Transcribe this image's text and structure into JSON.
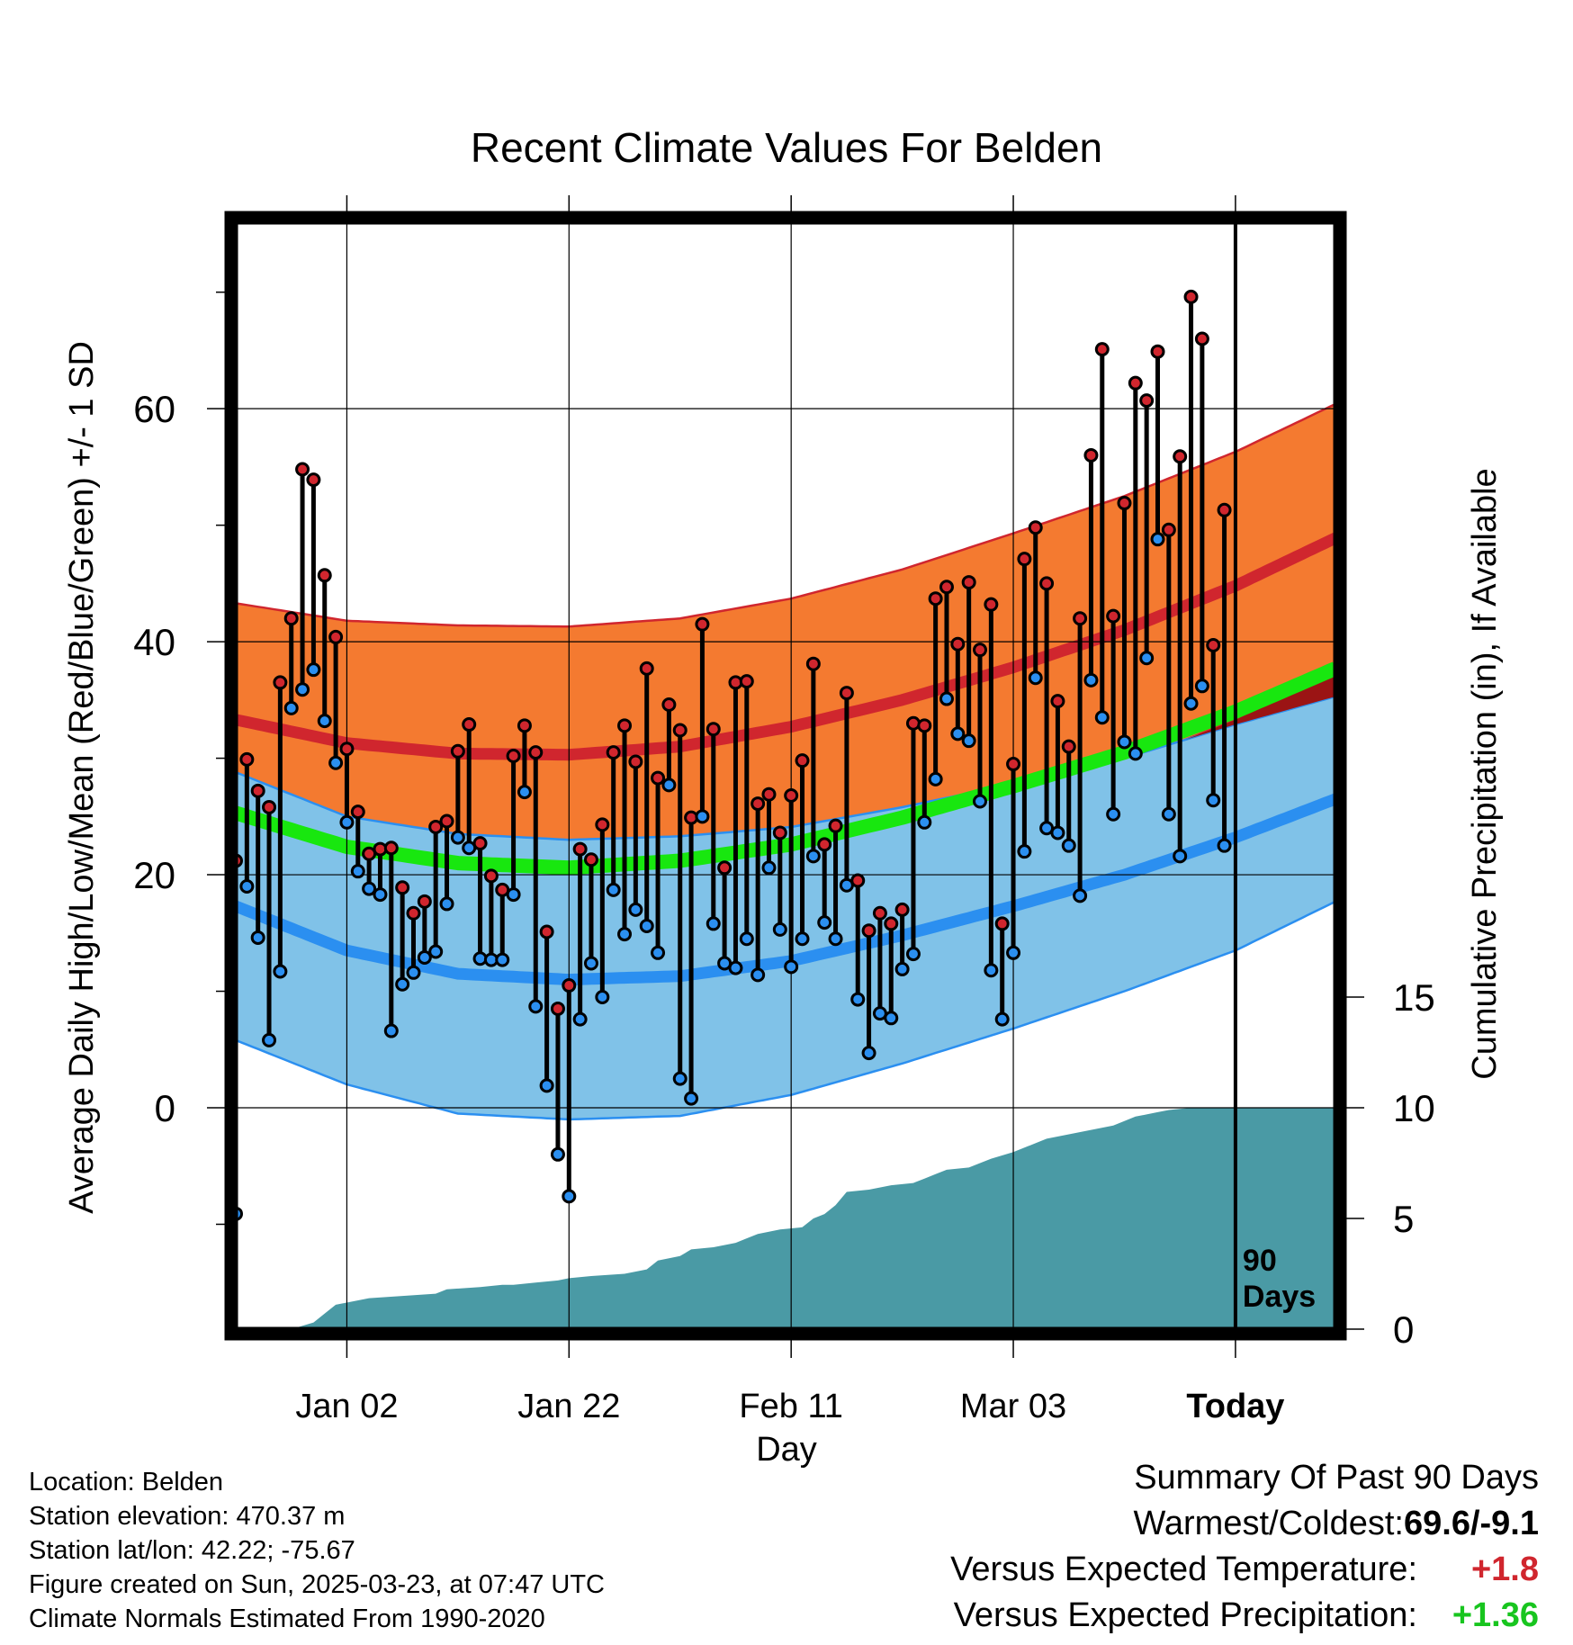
{
  "chart_data": {
    "type": "line",
    "title": "Recent Climate Values For Belden",
    "xlabel": "Day",
    "ylabel_left": "Average Daily High/Low/Mean (Red/Blue/Green) +/- 1 SD",
    "ylabel_right": "Cumulative Precipitation (in), If Available",
    "x_tick_labels": [
      "Jan 02",
      "Jan 22",
      "Feb 11",
      "Mar 03",
      "Today"
    ],
    "x_tick_day_index": [
      10,
      30,
      50,
      70,
      90
    ],
    "xlim_day_index": [
      0,
      99
    ],
    "ylim_left": [
      -19,
      76
    ],
    "y_ticks_left": [
      0,
      20,
      40,
      60
    ],
    "ylim_right": [
      0,
      50
    ],
    "y_ticks_right": [
      0,
      5,
      10,
      15
    ],
    "today_marker": {
      "day_index": 90,
      "label_line1": "90",
      "label_line2": "Days"
    },
    "normals_high": {
      "day_index": [
        0,
        10,
        20,
        30,
        40,
        50,
        60,
        70,
        80,
        90,
        99
      ],
      "mean": [
        33.3,
        31.3,
        30.4,
        30.3,
        31.0,
        32.7,
        35.0,
        37.8,
        41.0,
        44.8,
        48.9
      ],
      "sd": [
        10.0,
        10.5,
        11.0,
        11.0,
        11.0,
        11.0,
        11.2,
        11.5,
        11.5,
        11.5,
        11.5
      ]
    },
    "normals_low": {
      "day_index": [
        0,
        10,
        20,
        30,
        40,
        50,
        60,
        70,
        80,
        90,
        99
      ],
      "mean": [
        17.3,
        13.5,
        11.5,
        11.0,
        11.3,
        12.6,
        14.8,
        17.3,
        20.0,
        23.2,
        26.5
      ],
      "sd": [
        11.5,
        11.5,
        12.0,
        12.0,
        12.0,
        11.5,
        11.0,
        10.5,
        10.0,
        9.7,
        8.8
      ]
    },
    "normals_mean": {
      "day_index": [
        0,
        10,
        20,
        30,
        40,
        50,
        60,
        70,
        80,
        90,
        99
      ],
      "values": [
        25.3,
        22.4,
        21.0,
        20.6,
        21.2,
        22.6,
        24.9,
        27.6,
        30.5,
        34.0,
        37.7
      ]
    },
    "series": [
      {
        "name": "High",
        "color": "#d0262e",
        "values": [
          21.2,
          29.9,
          27.2,
          25.8,
          36.5,
          42.0,
          54.8,
          53.9,
          45.7,
          40.4,
          30.8,
          25.4,
          21.8,
          22.2,
          22.3,
          18.9,
          16.7,
          17.7,
          24.1,
          24.6,
          30.6,
          32.9,
          22.7,
          19.9,
          18.7,
          30.2,
          32.8,
          30.5,
          15.1,
          8.5,
          10.5,
          22.2,
          21.3,
          24.3,
          30.5,
          32.8,
          29.7,
          37.7,
          28.3,
          34.6,
          32.4,
          24.9,
          41.5,
          32.5,
          20.6,
          36.5,
          36.6,
          26.1,
          26.9,
          23.6,
          26.8,
          29.8,
          38.1,
          22.6,
          24.2,
          35.6,
          19.5,
          15.2,
          16.7,
          15.8,
          17.0,
          33.0,
          32.8,
          43.7,
          44.7,
          39.8,
          45.1,
          39.3,
          43.2,
          15.8,
          29.5,
          47.1,
          49.8,
          45.0,
          34.9,
          31.0,
          42.0,
          56.0,
          65.1,
          42.2,
          51.9,
          62.2,
          60.7,
          64.9,
          49.6,
          55.9,
          69.6,
          66.0,
          39.7,
          51.3
        ]
      },
      {
        "name": "Low",
        "color": "#2b8ff0",
        "values": [
          -9.1,
          19.0,
          14.6,
          5.8,
          11.7,
          34.3,
          35.9,
          37.6,
          33.2,
          29.6,
          24.5,
          20.3,
          18.8,
          18.3,
          6.6,
          10.6,
          11.6,
          12.9,
          13.4,
          17.5,
          23.2,
          22.3,
          12.8,
          12.7,
          12.7,
          18.3,
          27.1,
          8.7,
          1.9,
          -4.0,
          -7.6,
          7.6,
          12.4,
          9.5,
          18.7,
          14.9,
          17.0,
          15.6,
          13.3,
          27.7,
          2.5,
          0.8,
          25.0,
          15.8,
          12.4,
          12.0,
          14.5,
          11.4,
          20.6,
          15.3,
          12.1,
          14.5,
          21.6,
          15.9,
          14.5,
          19.1,
          9.3,
          4.7,
          8.1,
          7.7,
          11.9,
          13.2,
          24.5,
          28.2,
          35.1,
          32.1,
          31.5,
          26.3,
          11.8,
          7.6,
          13.3,
          22.0,
          36.9,
          24.0,
          23.6,
          22.5,
          18.2,
          36.7,
          33.5,
          25.2,
          31.4,
          30.4,
          38.6,
          48.8,
          25.2,
          21.6,
          34.7,
          36.2,
          26.4,
          22.5
        ]
      },
      {
        "name": "Cumulative Precipitation",
        "color": "#4a9aa5",
        "day_index": [
          0,
          5,
          7,
          8,
          9,
          10,
          12,
          15,
          18,
          19,
          22,
          24,
          25,
          27,
          29,
          30,
          32,
          35,
          37,
          38,
          40,
          41,
          43,
          45,
          46,
          47,
          48,
          49,
          51,
          52,
          53,
          54,
          55,
          57,
          59,
          61,
          62,
          63,
          64,
          66,
          67,
          68,
          70,
          72,
          73,
          75,
          77,
          79,
          80,
          81,
          82,
          83,
          84,
          86,
          87,
          88,
          89,
          90,
          99
        ],
        "values": [
          0,
          0,
          0.3,
          0.7,
          1.1,
          1.2,
          1.4,
          1.5,
          1.6,
          1.8,
          1.9,
          2.0,
          2.0,
          2.1,
          2.2,
          2.3,
          2.4,
          2.5,
          2.7,
          3.1,
          3.3,
          3.6,
          3.7,
          3.9,
          4.1,
          4.3,
          4.4,
          4.5,
          4.6,
          5.0,
          5.2,
          5.6,
          6.2,
          6.3,
          6.5,
          6.6,
          6.8,
          7.0,
          7.2,
          7.3,
          7.5,
          7.7,
          8.0,
          8.4,
          8.6,
          8.8,
          9.0,
          9.2,
          9.4,
          9.6,
          9.7,
          9.8,
          9.9,
          10.0,
          10.0,
          10.0,
          10.0,
          10.0,
          10.0
        ]
      }
    ]
  },
  "station": {
    "location": "Location: Belden",
    "elevation": "Station elevation: 470.37 m",
    "latlon": "Station lat/lon: 42.22; -75.67",
    "created": "Figure created on Sun, 2025-03-23, at 07:47 UTC",
    "normals": "Climate Normals Estimated From 1990-2020"
  },
  "summary": {
    "heading": "Summary Of Past 90 Days",
    "warm_cold_label": "Warmest/Coldest:",
    "warm_cold_value": "69.6/-9.1",
    "temp_label": "Versus Expected Temperature:",
    "temp_value": "+1.8",
    "temp_color": "#d0262e",
    "precip_label": "Versus Expected Precipitation:",
    "precip_value": "+1.36",
    "precip_color": "#18c51f"
  }
}
